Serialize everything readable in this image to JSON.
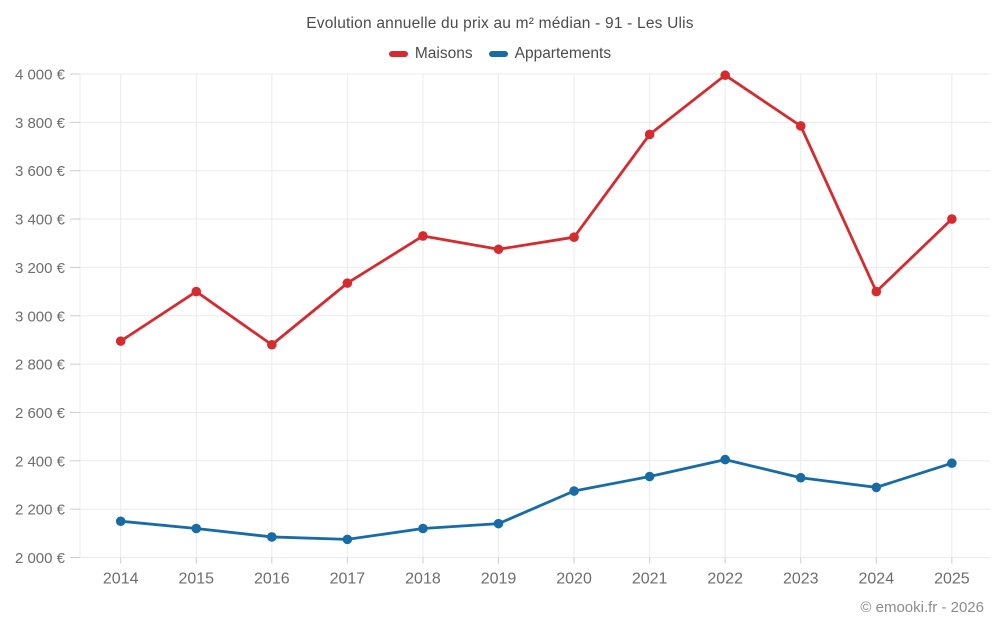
{
  "chart_data": {
    "type": "line",
    "title": "Evolution annuelle du prix au m² médian - 91 - Les Ulis",
    "categories": [
      "2014",
      "2015",
      "2016",
      "2017",
      "2018",
      "2019",
      "2020",
      "2021",
      "2022",
      "2023",
      "2024",
      "2025"
    ],
    "series": [
      {
        "name": "Maisons",
        "color": "#d62b2e",
        "values": [
          2895,
          3100,
          2880,
          3135,
          3330,
          3275,
          3325,
          3750,
          3995,
          3785,
          3100,
          3400
        ]
      },
      {
        "name": "Appartements",
        "color": "#176ba6",
        "values": [
          2150,
          2120,
          2085,
          2075,
          2120,
          2140,
          2275,
          2335,
          2405,
          2330,
          2290,
          2390
        ]
      }
    ],
    "ylim": [
      2000,
      4000
    ],
    "ytick_values": [
      2000,
      2200,
      2400,
      2600,
      2800,
      3000,
      3200,
      3400,
      3600,
      3800,
      4000
    ],
    "ytick_labels": [
      "2 000 €",
      "2 200 €",
      "2 400 €",
      "2 600 €",
      "2 800 €",
      "3 000 €",
      "3 200 €",
      "3 400 €",
      "3 600 €",
      "3 800 €",
      "4 000 €"
    ],
    "grid": true,
    "legend_position": "top"
  },
  "footer": {
    "copyright": "© emooki.fr - 2026"
  }
}
